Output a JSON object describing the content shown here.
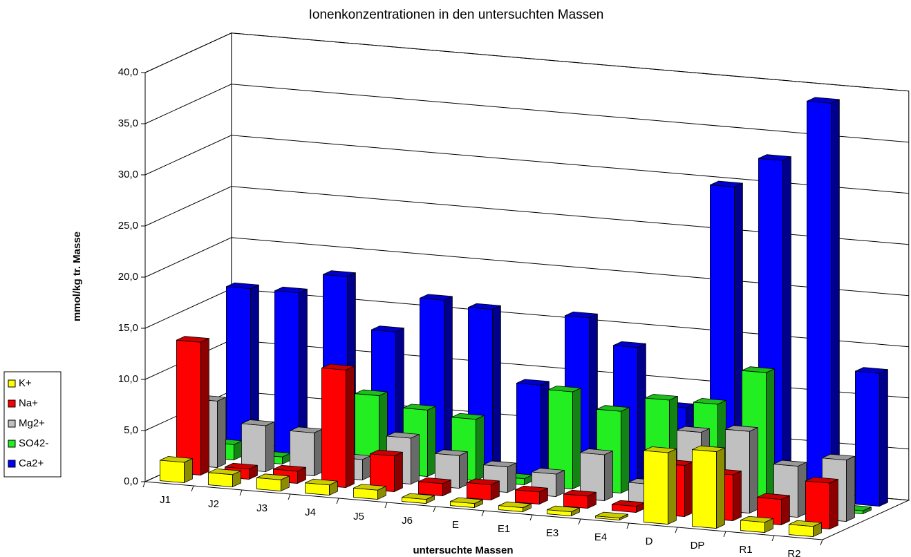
{
  "chart_data": {
    "type": "bar3d",
    "title": "Ionenkonzentrationen in den untersuchten Massen",
    "x_label": "untersuchte Massen",
    "y_label": "mmol/kg tr. Masse",
    "categories": [
      "J1",
      "J2",
      "J3",
      "J4",
      "J5",
      "J6",
      "E",
      "E1",
      "E3",
      "E4",
      "D",
      "DP",
      "R1",
      "R2"
    ],
    "series": [
      {
        "name": "K+",
        "color": "#ffff00",
        "values": [
          2.0,
          1.2,
          1.1,
          1.0,
          0.9,
          0.4,
          0.4,
          0.4,
          0.4,
          0.2,
          7.0,
          7.5,
          1.0,
          1.0
        ]
      },
      {
        "name": "Na+",
        "color": "#ff0000",
        "values": [
          13.0,
          1.0,
          1.2,
          11.5,
          3.5,
          1.2,
          1.5,
          1.2,
          1.2,
          0.6,
          5.0,
          4.5,
          2.5,
          4.5
        ]
      },
      {
        "name": "Mg2+",
        "color": "#c0c0c0",
        "values": [
          6.5,
          4.5,
          4.2,
          2.0,
          4.5,
          3.2,
          2.5,
          2.2,
          4.5,
          2.0,
          7.5,
          8.0,
          5.0,
          6.0
        ]
      },
      {
        "name": "SO42-",
        "color": "#22ee22",
        "values": [
          1.5,
          0.7,
          0.6,
          7.5,
          6.5,
          6.0,
          0.6,
          9.5,
          8.0,
          9.5,
          9.5,
          13.0,
          0.6,
          0.3
        ]
      },
      {
        "name": "Ca2+",
        "color": "#0000ff",
        "values": [
          16.0,
          16.0,
          18.0,
          13.0,
          16.5,
          16.0,
          9.0,
          16.0,
          13.5,
          8.0,
          30.0,
          33.0,
          39.0,
          13.0
        ]
      }
    ],
    "ylim": [
      0,
      40
    ],
    "yticks": [
      {
        "value": 0,
        "label": "0,0"
      },
      {
        "value": 5,
        "label": "5,0"
      },
      {
        "value": 10,
        "label": "10,0"
      },
      {
        "value": 15,
        "label": "15,0"
      },
      {
        "value": 20,
        "label": "20,0"
      },
      {
        "value": 25,
        "label": "25,0"
      },
      {
        "value": 30,
        "label": "30,0"
      },
      {
        "value": 35,
        "label": "35,0"
      },
      {
        "value": 40,
        "label": "40,0"
      }
    ],
    "grid": true,
    "legend": "left"
  }
}
